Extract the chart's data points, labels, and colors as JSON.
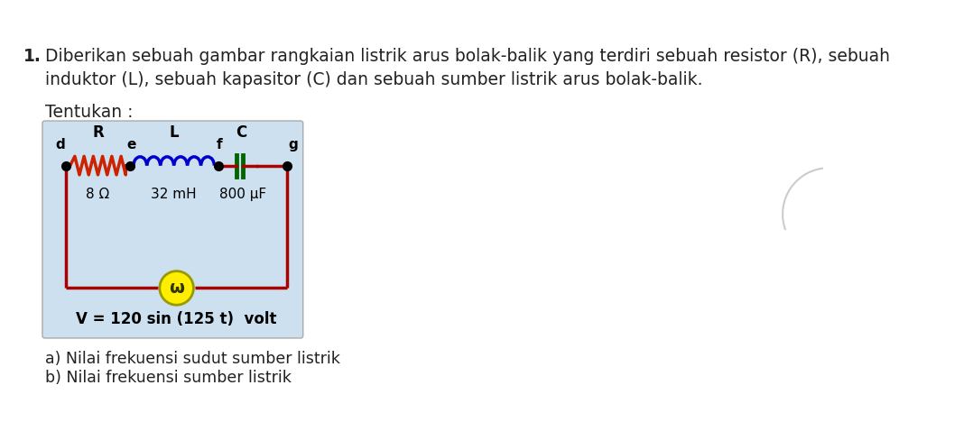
{
  "problem_number": "1.",
  "problem_text_line1": "Diberikan sebuah gambar rangkaian listrik arus bolak-balik yang terdiri sebuah resistor (R), sebuah",
  "problem_text_line2": "induktor (L), sebuah kapasitor (C) dan sebuah sumber listrik arus bolak-balik.",
  "tentukan_label": "Tentukan :",
  "circuit_box_color": "#cce0f0",
  "circuit_box_border": "#aaaaaa",
  "wire_color": "#aa0000",
  "resistor_color": "#cc2200",
  "inductor_color": "#0000cc",
  "capacitor_color": "#006600",
  "node_color": "#000000",
  "R_label": "R",
  "L_label": "L",
  "C_label": "C",
  "R_value": "8 Ω",
  "L_value": "32 mH",
  "C_value": "800 μF",
  "node_d": "d",
  "node_e": "e",
  "node_f": "f",
  "node_g": "g",
  "source_label": "V = 120 sin (125 t)  volt",
  "source_color": "#ffee00",
  "source_edge_color": "#999900",
  "source_symbol": "ω",
  "answer_a": "a) Nilai frekuensi sudut sumber listrik",
  "answer_b": "b) Nilai frekuensi sumber listrik",
  "bg_color": "#ffffff",
  "text_color": "#222222",
  "font_size_main": 13.5,
  "font_size_small": 12.5,
  "font_size_circuit": 11,
  "font_size_value": 11
}
